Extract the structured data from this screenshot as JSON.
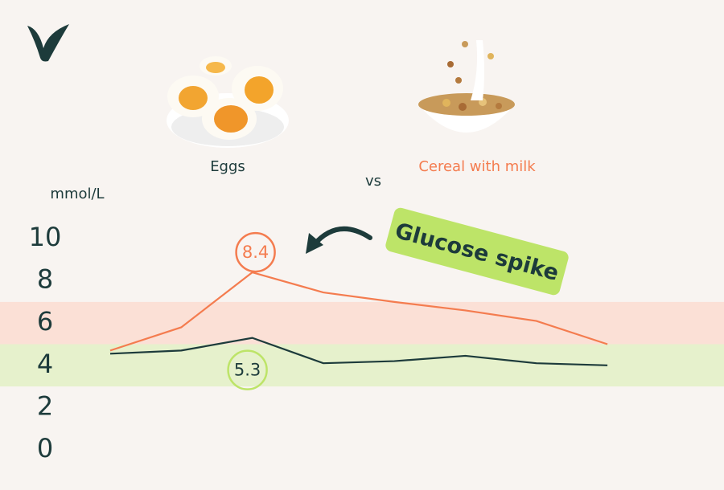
{
  "chart_data": {
    "type": "line",
    "ylabel": "mmol/L",
    "vs_text": "vs",
    "callout": "Glucose spike",
    "categories": [
      null,
      null,
      null,
      null,
      null,
      null,
      null,
      null
    ],
    "series": [
      {
        "name": "Cereal with milk",
        "color": "#f47c4f",
        "values": [
          4.7,
          5.8,
          8.4,
          7.45,
          7.0,
          6.6,
          6.1,
          5.0
        ],
        "value_labels": [
          null,
          null,
          "8.4",
          null,
          null,
          null,
          null,
          null
        ]
      },
      {
        "name": "Eggs",
        "color": "#1d3b3b",
        "values": [
          4.55,
          4.7,
          5.3,
          4.1,
          4.2,
          4.45,
          4.1,
          4.0
        ],
        "value_labels": [
          null,
          null,
          "5.3",
          null,
          null,
          null,
          null,
          null
        ]
      }
    ],
    "bands": [
      {
        "range": [
          5,
          7
        ],
        "color": "#fbe0d6"
      },
      {
        "range": [
          3,
          5
        ],
        "color": "#e6f1cc"
      }
    ],
    "ylim": [
      0,
      10
    ],
    "yticks": [
      0,
      2,
      4,
      6,
      8,
      10
    ],
    "grid": false
  }
}
